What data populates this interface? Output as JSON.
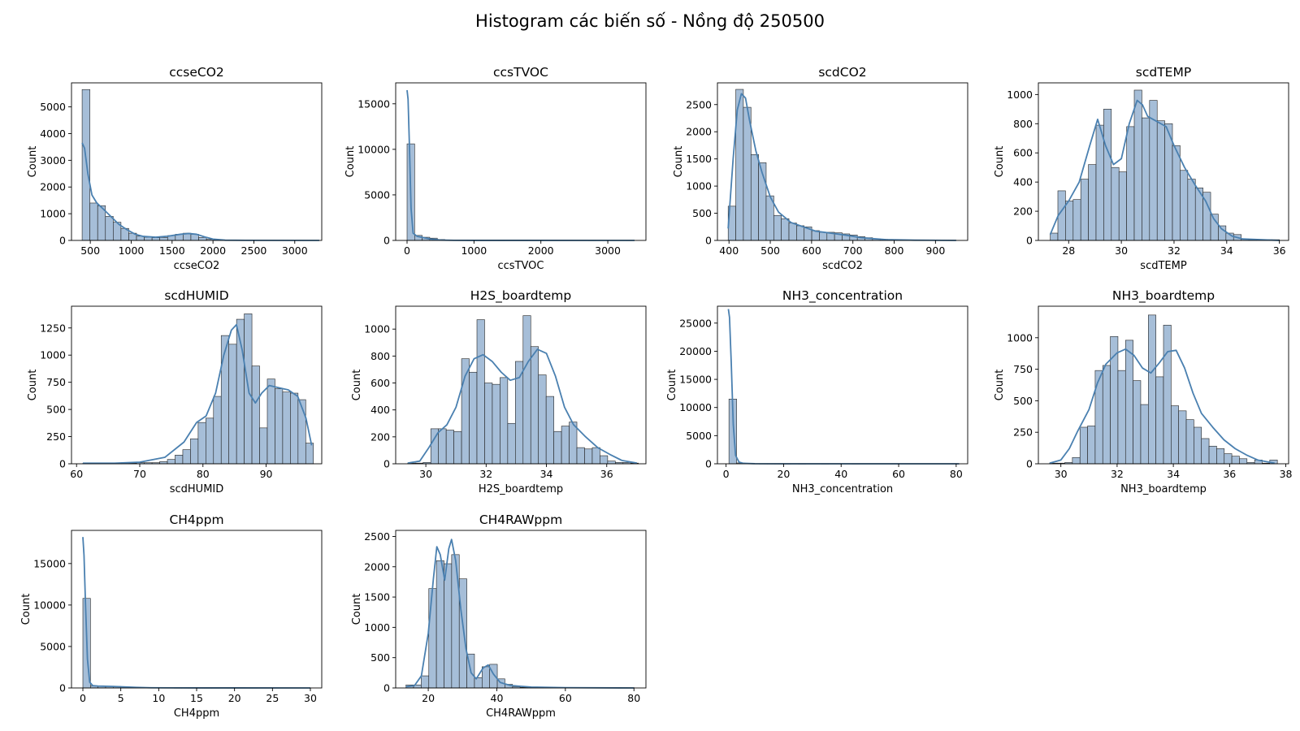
{
  "figure": {
    "title": "Histogram các biến số - Nồng độ 250500",
    "bar_fill": "#a6bed8",
    "bar_edge": "#222222",
    "kde_color": "#4a80b0"
  },
  "chart_data": [
    {
      "type": "bar",
      "title": "ccseCO2",
      "xlabel": "ccseCO2",
      "ylabel": "Count",
      "xlim": [
        270,
        3330
      ],
      "ylim": [
        0,
        5900
      ],
      "xticks": [
        500,
        1000,
        1500,
        2000,
        2500,
        3000
      ],
      "yticks": [
        0,
        1000,
        2000,
        3000,
        4000,
        5000
      ],
      "bins": {
        "start": 400,
        "width": 95,
        "counts": [
          5650,
          1400,
          1300,
          900,
          680,
          450,
          270,
          160,
          120,
          100,
          110,
          180,
          230,
          270,
          230,
          110,
          40,
          20,
          10,
          5,
          5,
          5,
          5,
          5,
          0,
          5,
          5,
          0,
          0,
          5
        ]
      },
      "kde": [
        [
          400,
          3650
        ],
        [
          430,
          3450
        ],
        [
          470,
          2500
        ],
        [
          520,
          1700
        ],
        [
          580,
          1400
        ],
        [
          650,
          1200
        ],
        [
          750,
          900
        ],
        [
          850,
          600
        ],
        [
          950,
          400
        ],
        [
          1050,
          230
        ],
        [
          1150,
          150
        ],
        [
          1300,
          120
        ],
        [
          1450,
          160
        ],
        [
          1600,
          230
        ],
        [
          1700,
          260
        ],
        [
          1800,
          230
        ],
        [
          1900,
          130
        ],
        [
          2000,
          50
        ],
        [
          2150,
          10
        ],
        [
          2400,
          5
        ],
        [
          3300,
          0
        ]
      ]
    },
    {
      "type": "bar",
      "title": "ccsTVOC",
      "xlabel": "ccsTVOC",
      "ylabel": "Count",
      "xlim": [
        -170,
        3570
      ],
      "ylim": [
        0,
        17300
      ],
      "xticks": [
        0,
        1000,
        2000,
        3000
      ],
      "yticks": [
        0,
        5000,
        10000,
        15000
      ],
      "bins": {
        "start": 0,
        "width": 113,
        "counts": [
          10600,
          550,
          350,
          250,
          100,
          50,
          20,
          10,
          5,
          5,
          5,
          0,
          5,
          0,
          0,
          5,
          0,
          0,
          0,
          5,
          0,
          0,
          0,
          0,
          5,
          0,
          0,
          0,
          0,
          5
        ]
      },
      "kde": [
        [
          0,
          16500
        ],
        [
          15,
          15500
        ],
        [
          35,
          10500
        ],
        [
          60,
          3500
        ],
        [
          90,
          800
        ],
        [
          150,
          450
        ],
        [
          250,
          300
        ],
        [
          350,
          150
        ],
        [
          500,
          40
        ],
        [
          700,
          10
        ],
        [
          1000,
          5
        ],
        [
          3400,
          0
        ]
      ]
    },
    {
      "type": "bar",
      "title": "scdCO2",
      "xlabel": "scdCO2",
      "ylabel": "Count",
      "xlim": [
        372,
        978
      ],
      "ylim": [
        0,
        2900
      ],
      "xticks": [
        400,
        500,
        600,
        700,
        800,
        900
      ],
      "yticks": [
        0,
        500,
        1000,
        1500,
        2000,
        2500
      ],
      "bins": {
        "start": 398,
        "width": 18.4,
        "counts": [
          630,
          2780,
          2450,
          1580,
          1430,
          820,
          460,
          400,
          320,
          270,
          250,
          180,
          150,
          150,
          140,
          120,
          100,
          70,
          50,
          30,
          20,
          15,
          10,
          5,
          5,
          5,
          5,
          5,
          5,
          5
        ]
      },
      "kde": [
        [
          398,
          220
        ],
        [
          410,
          1500
        ],
        [
          420,
          2400
        ],
        [
          430,
          2700
        ],
        [
          440,
          2620
        ],
        [
          450,
          2200
        ],
        [
          465,
          1650
        ],
        [
          480,
          1250
        ],
        [
          500,
          800
        ],
        [
          520,
          520
        ],
        [
          550,
          330
        ],
        [
          580,
          250
        ],
        [
          610,
          170
        ],
        [
          640,
          140
        ],
        [
          680,
          100
        ],
        [
          720,
          50
        ],
        [
          780,
          15
        ],
        [
          850,
          5
        ],
        [
          950,
          0
        ]
      ]
    },
    {
      "type": "bar",
      "title": "scdTEMP",
      "xlabel": "scdTEMP",
      "ylabel": "Count",
      "xlim": [
        26.85,
        36.35
      ],
      "ylim": [
        0,
        1080
      ],
      "xticks": [
        28,
        30,
        32,
        34,
        36
      ],
      "yticks": [
        0,
        200,
        400,
        600,
        800,
        1000
      ],
      "bins": {
        "start": 27.3,
        "width": 0.29,
        "counts": [
          50,
          340,
          270,
          280,
          420,
          520,
          790,
          900,
          500,
          470,
          780,
          1030,
          840,
          960,
          820,
          800,
          650,
          480,
          420,
          360,
          330,
          180,
          100,
          50,
          40,
          10,
          5,
          5,
          5,
          5
        ]
      },
      "kde": [
        [
          27.3,
          40
        ],
        [
          27.6,
          170
        ],
        [
          28.0,
          270
        ],
        [
          28.4,
          400
        ],
        [
          28.8,
          650
        ],
        [
          29.1,
          830
        ],
        [
          29.4,
          650
        ],
        [
          29.7,
          520
        ],
        [
          30.0,
          560
        ],
        [
          30.3,
          800
        ],
        [
          30.6,
          960
        ],
        [
          30.8,
          930
        ],
        [
          31.0,
          850
        ],
        [
          31.3,
          820
        ],
        [
          31.7,
          780
        ],
        [
          32.0,
          650
        ],
        [
          32.4,
          500
        ],
        [
          32.8,
          380
        ],
        [
          33.2,
          270
        ],
        [
          33.5,
          150
        ],
        [
          33.8,
          80
        ],
        [
          34.2,
          30
        ],
        [
          34.6,
          10
        ],
        [
          36.0,
          0
        ]
      ]
    },
    {
      "type": "bar",
      "title": "scdHUMID",
      "xlabel": "scdHUMID",
      "ylabel": "Count",
      "xlim": [
        59.2,
        98.8
      ],
      "ylim": [
        0,
        1450
      ],
      "xticks": [
        60,
        70,
        80,
        90
      ],
      "yticks": [
        0,
        250,
        500,
        750,
        1000,
        1250
      ],
      "bins": {
        "start": 61,
        "width": 1.216,
        "counts": [
          5,
          5,
          5,
          5,
          5,
          5,
          5,
          10,
          10,
          10,
          20,
          40,
          80,
          130,
          230,
          380,
          420,
          620,
          1180,
          1100,
          1330,
          1380,
          900,
          330,
          780,
          690,
          660,
          650,
          590,
          190
        ]
      },
      "kde": [
        [
          61,
          5
        ],
        [
          66,
          5
        ],
        [
          70,
          15
        ],
        [
          74,
          60
        ],
        [
          77,
          200
        ],
        [
          79,
          380
        ],
        [
          80.5,
          440
        ],
        [
          82,
          650
        ],
        [
          83.3,
          1000
        ],
        [
          84.5,
          1230
        ],
        [
          85.3,
          1280
        ],
        [
          86.2,
          1050
        ],
        [
          87.3,
          650
        ],
        [
          88.3,
          560
        ],
        [
          89.3,
          650
        ],
        [
          90.5,
          720
        ],
        [
          92,
          700
        ],
        [
          93.5,
          680
        ],
        [
          95,
          620
        ],
        [
          96.3,
          420
        ],
        [
          97.2,
          170
        ]
      ]
    },
    {
      "type": "bar",
      "title": "H2S_boardtemp",
      "xlabel": "H2S_boardtemp",
      "ylabel": "Count",
      "xlim": [
        29,
        37.3
      ],
      "ylim": [
        0,
        1170
      ],
      "xticks": [
        30,
        32,
        34,
        36
      ],
      "yticks": [
        0,
        200,
        400,
        600,
        800,
        1000
      ],
      "bins": {
        "start": 29.4,
        "width": 0.255,
        "counts": [
          5,
          5,
          10,
          260,
          260,
          250,
          240,
          780,
          680,
          1070,
          600,
          590,
          640,
          300,
          760,
          1100,
          870,
          660,
          500,
          240,
          280,
          310,
          120,
          110,
          120,
          60,
          20,
          10,
          10,
          5
        ]
      },
      "kde": [
        [
          29.4,
          5
        ],
        [
          29.8,
          20
        ],
        [
          30.1,
          120
        ],
        [
          30.4,
          230
        ],
        [
          30.7,
          290
        ],
        [
          31.0,
          420
        ],
        [
          31.3,
          650
        ],
        [
          31.6,
          780
        ],
        [
          31.9,
          810
        ],
        [
          32.2,
          760
        ],
        [
          32.5,
          680
        ],
        [
          32.8,
          620
        ],
        [
          33.1,
          640
        ],
        [
          33.4,
          760
        ],
        [
          33.7,
          850
        ],
        [
          34.0,
          820
        ],
        [
          34.3,
          650
        ],
        [
          34.6,
          420
        ],
        [
          34.9,
          290
        ],
        [
          35.3,
          200
        ],
        [
          35.7,
          120
        ],
        [
          36.1,
          70
        ],
        [
          36.5,
          25
        ],
        [
          37.0,
          5
        ]
      ]
    },
    {
      "type": "bar",
      "title": "NH3_concentration",
      "xlabel": "NH3_concentration",
      "ylabel": "Count",
      "xlim": [
        -3,
        84
      ],
      "ylim": [
        0,
        28000
      ],
      "xticks": [
        0,
        20,
        40,
        60,
        80
      ],
      "yticks": [
        0,
        5000,
        10000,
        15000,
        20000,
        25000
      ],
      "bins": {
        "start": 1,
        "width": 2.67,
        "counts": [
          11500,
          150,
          30,
          10,
          5,
          5,
          5,
          5,
          0,
          5,
          0,
          0,
          5,
          0,
          0,
          0,
          5,
          0,
          0,
          0,
          0,
          5,
          0,
          0,
          0,
          0,
          0,
          0,
          0,
          5
        ]
      },
      "kde": [
        [
          0.8,
          27500
        ],
        [
          1.2,
          26000
        ],
        [
          1.8,
          18000
        ],
        [
          2.5,
          7000
        ],
        [
          3.3,
          1500
        ],
        [
          4.5,
          300
        ],
        [
          6,
          80
        ],
        [
          10,
          20
        ],
        [
          20,
          5
        ],
        [
          81,
          0
        ]
      ]
    },
    {
      "type": "bar",
      "title": "NH3_boardtemp",
      "xlabel": "NH3_boardtemp",
      "ylabel": "Count",
      "xlim": [
        29.2,
        38.1
      ],
      "ylim": [
        0,
        1250
      ],
      "xticks": [
        30,
        32,
        34,
        36,
        38
      ],
      "yticks": [
        0,
        250,
        500,
        750,
        1000
      ],
      "bins": {
        "start": 29.6,
        "width": 0.27,
        "counts": [
          5,
          5,
          10,
          50,
          290,
          300,
          740,
          780,
          1010,
          740,
          980,
          660,
          470,
          1180,
          690,
          1100,
          460,
          420,
          350,
          290,
          200,
          140,
          120,
          80,
          60,
          40,
          10,
          30,
          5,
          30
        ]
      },
      "kde": [
        [
          29.6,
          5
        ],
        [
          30.0,
          30
        ],
        [
          30.3,
          120
        ],
        [
          30.6,
          260
        ],
        [
          31.0,
          430
        ],
        [
          31.3,
          640
        ],
        [
          31.6,
          790
        ],
        [
          32.0,
          880
        ],
        [
          32.3,
          910
        ],
        [
          32.6,
          860
        ],
        [
          32.9,
          760
        ],
        [
          33.2,
          720
        ],
        [
          33.5,
          800
        ],
        [
          33.8,
          890
        ],
        [
          34.1,
          900
        ],
        [
          34.4,
          760
        ],
        [
          34.7,
          560
        ],
        [
          35.0,
          400
        ],
        [
          35.4,
          290
        ],
        [
          35.8,
          190
        ],
        [
          36.2,
          120
        ],
        [
          36.6,
          70
        ],
        [
          37.0,
          30
        ],
        [
          37.6,
          5
        ]
      ]
    },
    {
      "type": "bar",
      "title": "CH4ppm",
      "xlabel": "CH4ppm",
      "ylabel": "Count",
      "xlim": [
        -1.5,
        31.5
      ],
      "ylim": [
        0,
        19000
      ],
      "xticks": [
        0,
        5,
        10,
        15,
        20,
        25,
        30
      ],
      "yticks": [
        0,
        5000,
        10000,
        15000
      ],
      "bins": {
        "start": 0,
        "width": 1.0,
        "counts": [
          10800,
          250,
          250,
          200,
          180,
          150,
          100,
          60,
          40,
          20,
          10,
          10,
          5,
          5,
          5,
          5,
          5,
          5,
          0,
          5,
          0,
          0,
          5,
          0,
          0,
          0,
          0,
          0,
          0,
          5
        ]
      },
      "kde": [
        [
          0,
          18200
        ],
        [
          0.15,
          16000
        ],
        [
          0.35,
          10000
        ],
        [
          0.6,
          3500
        ],
        [
          0.9,
          700
        ],
        [
          1.3,
          280
        ],
        [
          2,
          230
        ],
        [
          3,
          210
        ],
        [
          4,
          180
        ],
        [
          5,
          150
        ],
        [
          6,
          110
        ],
        [
          7,
          70
        ],
        [
          9,
          25
        ],
        [
          12,
          10
        ],
        [
          20,
          5
        ],
        [
          30,
          0
        ]
      ]
    },
    {
      "type": "bar",
      "title": "CH4RAWppm",
      "xlabel": "CH4RAWppm",
      "ylabel": "Count",
      "xlim": [
        10.5,
        83.5
      ],
      "ylim": [
        0,
        2600
      ],
      "xticks": [
        20,
        40,
        60,
        80
      ],
      "yticks": [
        0,
        500,
        1000,
        1500,
        2000,
        2500
      ],
      "bins": {
        "start": 13.5,
        "width": 2.22,
        "counts": [
          50,
          50,
          200,
          1640,
          2100,
          2050,
          2200,
          1800,
          560,
          170,
          350,
          390,
          150,
          60,
          20,
          10,
          5,
          5,
          5,
          5,
          5,
          5,
          5,
          5,
          5,
          5,
          5,
          5,
          5,
          5
        ]
      },
      "kde": [
        [
          13.5,
          20
        ],
        [
          16,
          40
        ],
        [
          18,
          200
        ],
        [
          20,
          900
        ],
        [
          21.5,
          1800
        ],
        [
          22.5,
          2330
        ],
        [
          23.5,
          2200
        ],
        [
          24.8,
          1780
        ],
        [
          26,
          2300
        ],
        [
          26.8,
          2450
        ],
        [
          28,
          2100
        ],
        [
          29.5,
          1300
        ],
        [
          31,
          650
        ],
        [
          32.5,
          250
        ],
        [
          34,
          150
        ],
        [
          36,
          330
        ],
        [
          37.5,
          380
        ],
        [
          39,
          230
        ],
        [
          41,
          90
        ],
        [
          44,
          40
        ],
        [
          50,
          15
        ],
        [
          60,
          5
        ],
        [
          80,
          0
        ]
      ]
    }
  ]
}
